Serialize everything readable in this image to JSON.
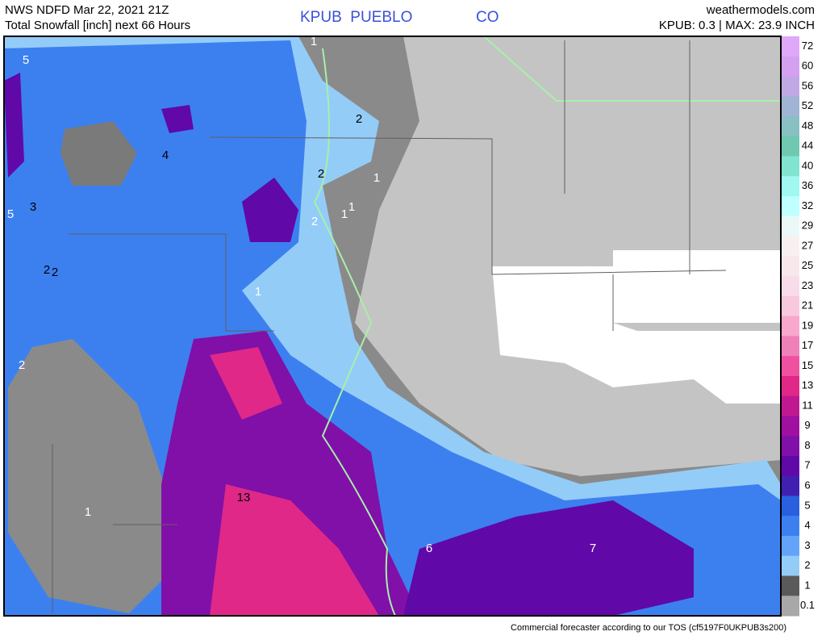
{
  "header": {
    "source": "NWS NDFD Mar 22, 2021 21Z",
    "product": "Total Snowfall [inch] next 66 Hours",
    "station": "KPUB  PUEBLO",
    "state": "CO",
    "site": "weathermodels.com",
    "summary": "KPUB: 0.3 | MAX: 23.9 INCH"
  },
  "legend": [
    {
      "label": "72",
      "color": "#e0a8f8"
    },
    {
      "label": "60",
      "color": "#d4a0f0"
    },
    {
      "label": "56",
      "color": "#c0a8e4"
    },
    {
      "label": "52",
      "color": "#a0b4d4"
    },
    {
      "label": "48",
      "color": "#88c0c4"
    },
    {
      "label": "44",
      "color": "#70c8b0"
    },
    {
      "label": "40",
      "color": "#80e4d0"
    },
    {
      "label": "36",
      "color": "#a0f8f0"
    },
    {
      "label": "32",
      "color": "#c0ffff"
    },
    {
      "label": "29",
      "color": "#eaf8f8"
    },
    {
      "label": "27",
      "color": "#f8f0f0"
    },
    {
      "label": "25",
      "color": "#f8e8ec"
    },
    {
      "label": "23",
      "color": "#f8dce8"
    },
    {
      "label": "21",
      "color": "#f8c8dc"
    },
    {
      "label": "19",
      "color": "#f8a8cc"
    },
    {
      "label": "17",
      "color": "#f080b8"
    },
    {
      "label": "15",
      "color": "#f050a0"
    },
    {
      "label": "13",
      "color": "#e02888"
    },
    {
      "label": "11",
      "color": "#c01890"
    },
    {
      "label": "9",
      "color": "#a010a0"
    },
    {
      "label": "8",
      "color": "#8010a8"
    },
    {
      "label": "7",
      "color": "#6008a8"
    },
    {
      "label": "6",
      "color": "#4020b0"
    },
    {
      "label": "5",
      "color": "#2860e0"
    },
    {
      "label": "4",
      "color": "#3c80f0"
    },
    {
      "label": "3",
      "color": "#64a4f8"
    },
    {
      "label": "2",
      "color": "#94ccf8"
    },
    {
      "label": "1",
      "color": "#5a5a5a"
    },
    {
      "label": "0.1",
      "color": "#a8a8a8"
    }
  ],
  "map_labels": [
    "5",
    "1",
    "2",
    "4",
    "2",
    "1",
    "5",
    "3",
    "2",
    "1",
    "1",
    "2",
    "2",
    "1",
    "2",
    "13",
    "1",
    "6",
    "7"
  ],
  "footer": "Commercial forecaster according to our TOS (cf5197F0UKPUB3s200)"
}
